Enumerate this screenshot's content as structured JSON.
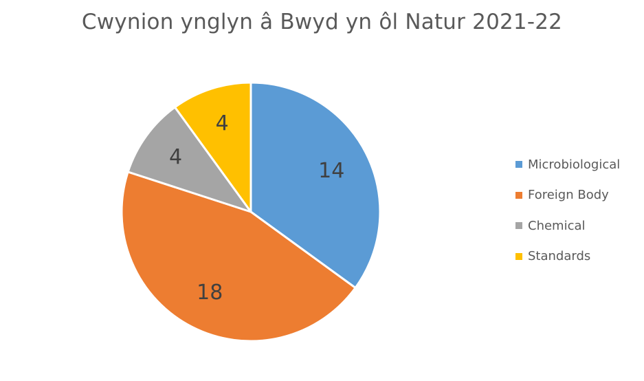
{
  "chart_data": {
    "type": "pie",
    "title": "Cwynion ynglyn â Bwyd yn ôl Natur 2021-22",
    "categories": [
      "Microbiological",
      "Foreign Body",
      "Chemical",
      "Standards"
    ],
    "values": [
      14,
      18,
      4,
      4
    ],
    "colors": [
      "#5B9BD5",
      "#ED7D31",
      "#A5A5A5",
      "#FFC000"
    ],
    "data_labels": [
      "14",
      "18",
      "4",
      "4"
    ],
    "legend_position": "right",
    "start_angle_deg": 0,
    "direction": "clockwise"
  }
}
